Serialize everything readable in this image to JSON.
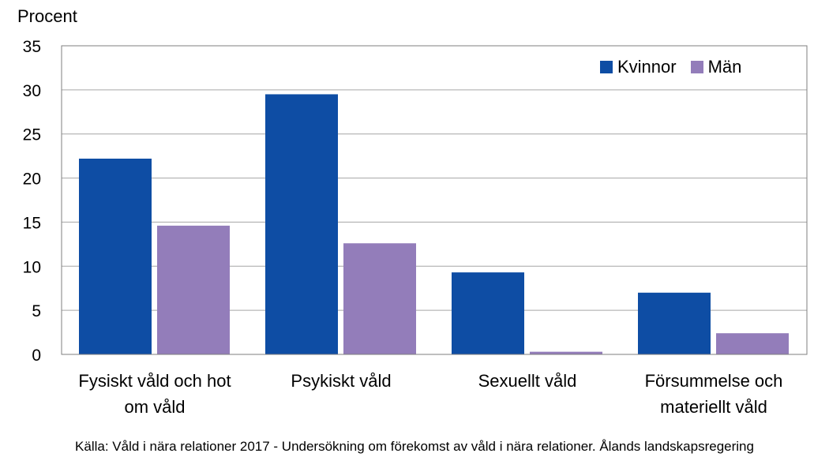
{
  "chart_data": {
    "type": "bar",
    "ylabel": "Procent",
    "ylim": [
      0,
      35
    ],
    "yticks": [
      0,
      5,
      10,
      15,
      20,
      25,
      30,
      35
    ],
    "grid": true,
    "legend_position": "top-right",
    "categories": [
      [
        "Fysiskt våld och hot",
        "om våld"
      ],
      [
        "Psykiskt våld"
      ],
      [
        "Sexuellt våld"
      ],
      [
        "Försummelse och",
        "materiellt våld"
      ]
    ],
    "series": [
      {
        "name": "Kvinnor",
        "color": "#0E4DA4",
        "values": [
          22.2,
          29.5,
          9.3,
          7.0
        ]
      },
      {
        "name": "Män",
        "color": "#937DBA",
        "values": [
          14.6,
          12.6,
          0.3,
          2.4
        ]
      }
    ]
  },
  "source": "Källa: Våld i nära relationer 2017 - Undersökning om förekomst av våld i nära relationer. Ålands landskapsregering"
}
